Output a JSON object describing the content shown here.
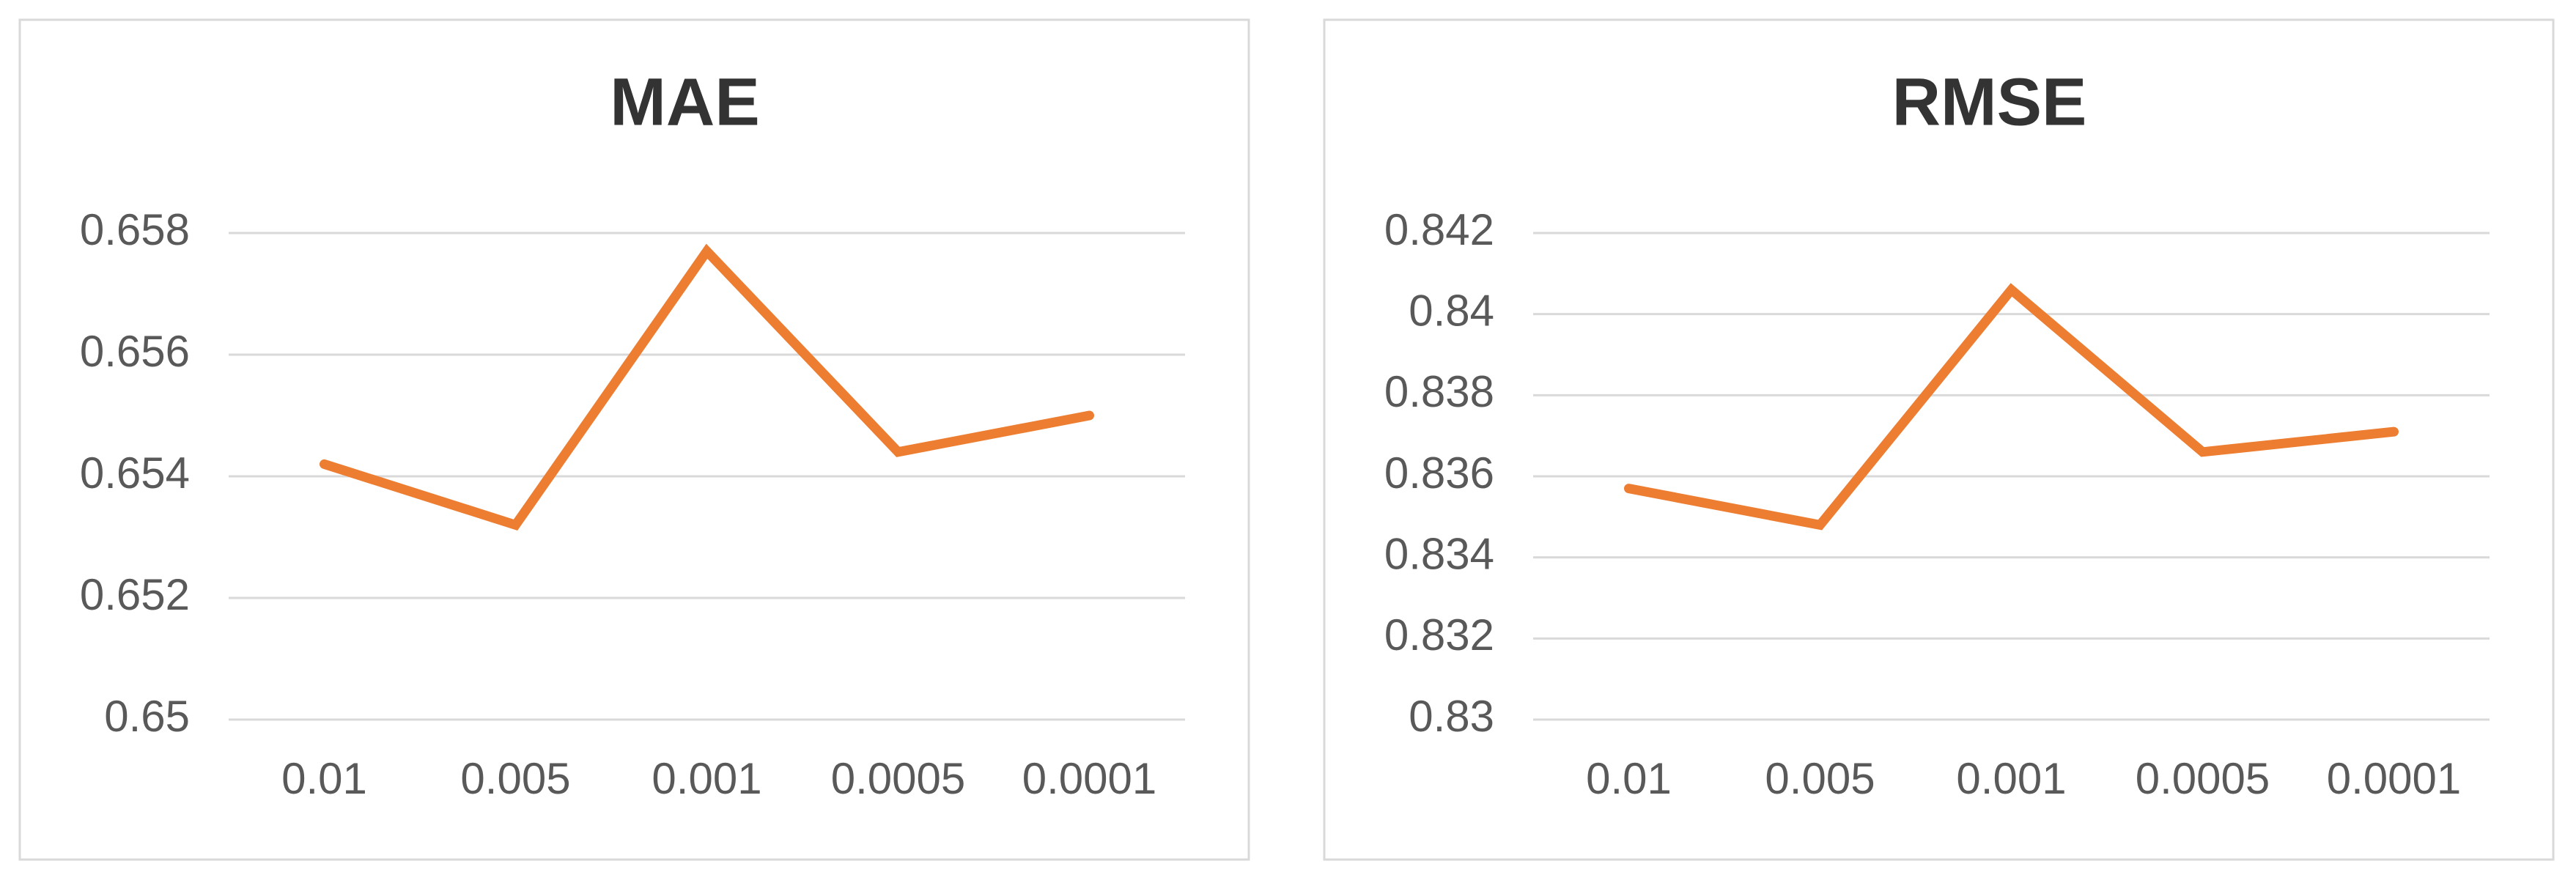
{
  "chart_data": [
    {
      "type": "line",
      "title": "MAE",
      "categories": [
        "0.01",
        "0.005",
        "0.001",
        "0.0005",
        "0.0001"
      ],
      "values": [
        0.6542,
        0.6532,
        0.6577,
        0.6544,
        0.655
      ],
      "color": "#ed7d31",
      "ylim": [
        0.65,
        0.658
      ],
      "yticks": [
        0.65,
        0.652,
        0.654,
        0.656,
        0.658
      ],
      "grid": true
    },
    {
      "type": "line",
      "title": "RMSE",
      "categories": [
        "0.01",
        "0.005",
        "0.001",
        "0.0005",
        "0.0001"
      ],
      "values": [
        0.8357,
        0.8348,
        0.8406,
        0.8366,
        0.8371
      ],
      "color": "#ed7d31",
      "ylim": [
        0.83,
        0.842
      ],
      "yticks": [
        0.83,
        0.832,
        0.834,
        0.836,
        0.838,
        0.84,
        0.842
      ],
      "grid": true
    }
  ]
}
